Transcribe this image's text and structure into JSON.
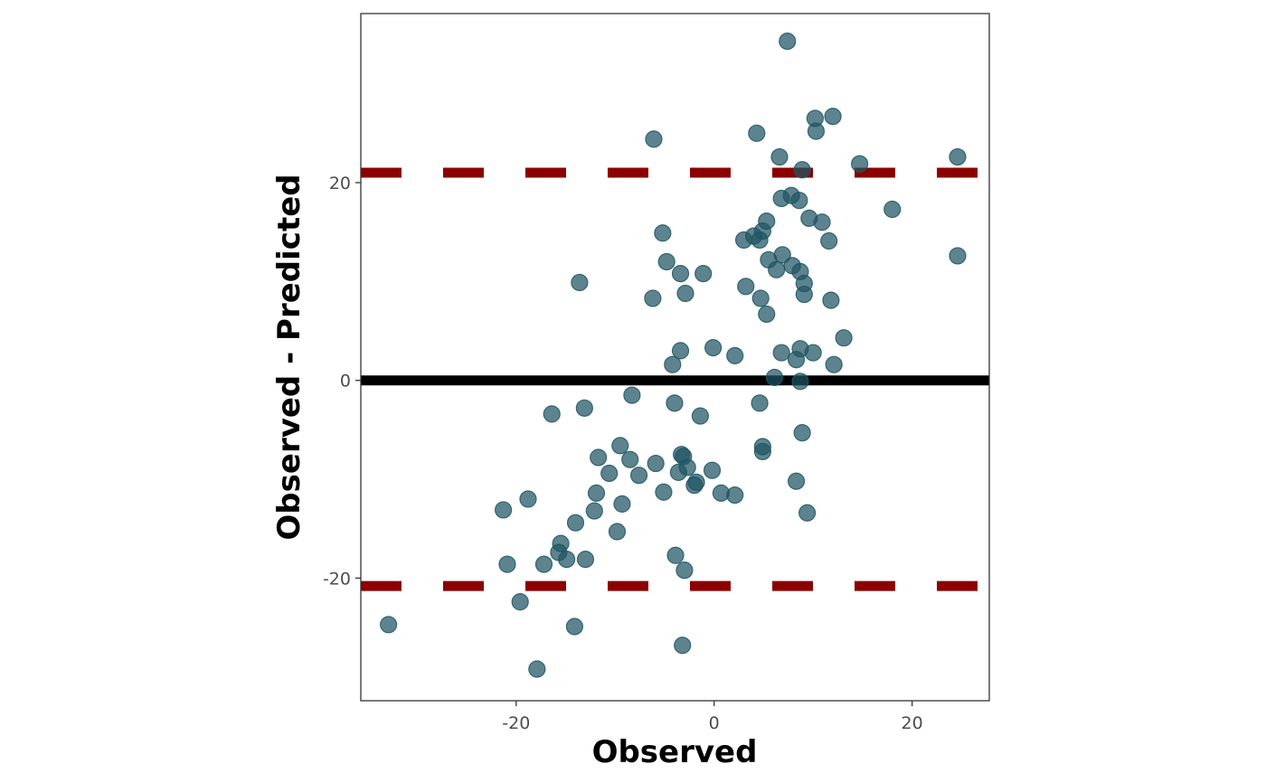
{
  "chart_data": {
    "type": "scatter",
    "title": "",
    "xlabel": "Observed",
    "ylabel": "Observed - Predicted",
    "xlim": [
      -35.7,
      27.8
    ],
    "ylim": [
      -32.4,
      37.1
    ],
    "x_ticks": [
      -20,
      0,
      20
    ],
    "y_ticks": [
      -20,
      0,
      20
    ],
    "x_tick_labels": [
      "-20",
      "0",
      "20"
    ],
    "y_tick_labels": [
      "-20",
      "0",
      "20"
    ],
    "grid": false,
    "legend": "none",
    "reference_lines": [
      {
        "kind": "solid",
        "y": 0,
        "color": "#000000"
      },
      {
        "kind": "dashed",
        "y": 21.0,
        "color": "#8b0000"
      },
      {
        "kind": "dashed",
        "y": -20.8,
        "color": "#8b0000"
      }
    ],
    "point_color": "#1e5563",
    "series": [
      {
        "points": [
          [
            7.4,
            34.3
          ],
          [
            12.0,
            26.7
          ],
          [
            10.2,
            26.5
          ],
          [
            10.3,
            25.2
          ],
          [
            4.3,
            25.0
          ],
          [
            -6.1,
            24.4
          ],
          [
            6.6,
            22.6
          ],
          [
            24.6,
            22.6
          ],
          [
            14.7,
            21.9
          ],
          [
            8.9,
            21.3
          ],
          [
            7.8,
            18.7
          ],
          [
            6.8,
            18.4
          ],
          [
            8.6,
            18.2
          ],
          [
            18.0,
            17.3
          ],
          [
            9.6,
            16.4
          ],
          [
            10.9,
            16.0
          ],
          [
            5.3,
            16.1
          ],
          [
            4.9,
            15.1
          ],
          [
            -5.2,
            14.9
          ],
          [
            4.0,
            14.6
          ],
          [
            4.6,
            14.2
          ],
          [
            3.0,
            14.2
          ],
          [
            11.6,
            14.1
          ],
          [
            6.9,
            12.7
          ],
          [
            24.6,
            12.6
          ],
          [
            5.5,
            12.2
          ],
          [
            -4.8,
            12.0
          ],
          [
            7.9,
            11.6
          ],
          [
            6.3,
            11.2
          ],
          [
            8.7,
            11.0
          ],
          [
            -1.1,
            10.8
          ],
          [
            -3.4,
            10.8
          ],
          [
            -13.6,
            9.9
          ],
          [
            9.1,
            9.8
          ],
          [
            3.2,
            9.5
          ],
          [
            -2.9,
            8.8
          ],
          [
            9.1,
            8.7
          ],
          [
            -6.2,
            8.3
          ],
          [
            4.7,
            8.3
          ],
          [
            11.8,
            8.1
          ],
          [
            5.3,
            6.7
          ],
          [
            13.1,
            4.3
          ],
          [
            -0.1,
            3.3
          ],
          [
            8.7,
            3.2
          ],
          [
            -3.4,
            3.0
          ],
          [
            10.0,
            2.8
          ],
          [
            6.8,
            2.8
          ],
          [
            2.1,
            2.5
          ],
          [
            8.3,
            2.1
          ],
          [
            12.1,
            1.6
          ],
          [
            -4.2,
            1.6
          ],
          [
            6.1,
            0.3
          ],
          [
            8.7,
            -0.1
          ],
          [
            -8.3,
            -1.5
          ],
          [
            -4.0,
            -2.3
          ],
          [
            4.6,
            -2.3
          ],
          [
            -13.1,
            -2.8
          ],
          [
            -16.4,
            -3.4
          ],
          [
            -1.4,
            -3.6
          ],
          [
            8.9,
            -5.3
          ],
          [
            -9.5,
            -6.6
          ],
          [
            4.9,
            -6.7
          ],
          [
            4.9,
            -7.2
          ],
          [
            -3.3,
            -7.5
          ],
          [
            -3.1,
            -7.7
          ],
          [
            -11.7,
            -7.8
          ],
          [
            -8.5,
            -8.0
          ],
          [
            -5.9,
            -8.4
          ],
          [
            -2.7,
            -8.8
          ],
          [
            -3.6,
            -9.3
          ],
          [
            -0.2,
            -9.1
          ],
          [
            -10.6,
            -9.4
          ],
          [
            -7.6,
            -9.6
          ],
          [
            -1.8,
            -10.3
          ],
          [
            8.3,
            -10.2
          ],
          [
            -2.0,
            -10.6
          ],
          [
            -5.1,
            -11.3
          ],
          [
            -11.9,
            -11.4
          ],
          [
            0.7,
            -11.4
          ],
          [
            2.1,
            -11.6
          ],
          [
            -18.8,
            -12.0
          ],
          [
            -9.3,
            -12.5
          ],
          [
            -21.3,
            -13.1
          ],
          [
            -12.1,
            -13.2
          ],
          [
            9.4,
            -13.4
          ],
          [
            -14.0,
            -14.4
          ],
          [
            -9.8,
            -15.3
          ],
          [
            -15.5,
            -16.5
          ],
          [
            -15.7,
            -17.4
          ],
          [
            -3.9,
            -17.7
          ],
          [
            -14.9,
            -18.1
          ],
          [
            -13.0,
            -18.1
          ],
          [
            -17.2,
            -18.6
          ],
          [
            -20.9,
            -18.6
          ],
          [
            -3.0,
            -19.2
          ],
          [
            -19.6,
            -22.4
          ],
          [
            -32.9,
            -24.7
          ],
          [
            -14.1,
            -24.9
          ],
          [
            -3.2,
            -26.8
          ],
          [
            -17.9,
            -29.2
          ]
        ]
      }
    ]
  }
}
